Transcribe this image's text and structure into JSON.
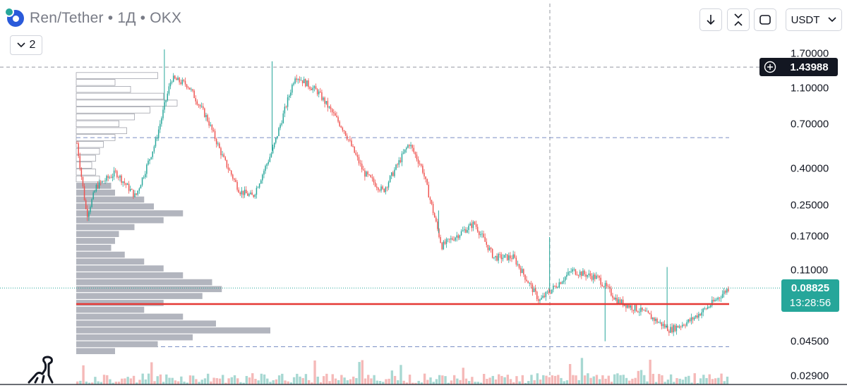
{
  "header": {
    "title": "Ren/Tether • 1Д • OKX",
    "interval_badge": "2"
  },
  "toolbar": {
    "currency": "USDT"
  },
  "price_axis": {
    "ticks": [
      "1.70000",
      "1.10000",
      "0.70000",
      "0.40000",
      "0.25000",
      "0.17000",
      "0.11000",
      "0.04500",
      "0.02900"
    ]
  },
  "crosshair": {
    "price": "1.43988"
  },
  "last_price": {
    "price": "0.08825",
    "countdown": "13:28:56"
  },
  "colors": {
    "up": "#26a69a",
    "down": "#ef5350",
    "horizontal_level": "#e53935",
    "volume_profile": "#b2b5be"
  },
  "chart_data": {
    "type": "candlestick",
    "title": "Ren/Tether • 1Д • OKX",
    "y_scale": "log",
    "ylim": [
      0.029,
      1.9
    ],
    "y_ticks": [
      1.7,
      1.1,
      0.7,
      0.4,
      0.25,
      0.17,
      0.11,
      0.045,
      0.029
    ],
    "crosshair_price": 1.43988,
    "last_price": 0.08825,
    "horizontal_level": 0.072,
    "dashed_levels": [
      0.59,
      0.042
    ],
    "price_path": [
      [
        0,
        0.55
      ],
      [
        0.015,
        0.22
      ],
      [
        0.03,
        0.32
      ],
      [
        0.06,
        0.38
      ],
      [
        0.09,
        0.28
      ],
      [
        0.12,
        0.55
      ],
      [
        0.145,
        1.25
      ],
      [
        0.17,
        1.15
      ],
      [
        0.2,
        0.75
      ],
      [
        0.225,
        0.45
      ],
      [
        0.25,
        0.3
      ],
      [
        0.27,
        0.28
      ],
      [
        0.3,
        0.5
      ],
      [
        0.335,
        1.3
      ],
      [
        0.37,
        1.05
      ],
      [
        0.41,
        0.65
      ],
      [
        0.44,
        0.38
      ],
      [
        0.47,
        0.3
      ],
      [
        0.51,
        0.55
      ],
      [
        0.53,
        0.4
      ],
      [
        0.56,
        0.15
      ],
      [
        0.61,
        0.2
      ],
      [
        0.64,
        0.13
      ],
      [
        0.67,
        0.13
      ],
      [
        0.71,
        0.075
      ],
      [
        0.76,
        0.11
      ],
      [
        0.8,
        0.1
      ],
      [
        0.83,
        0.075
      ],
      [
        0.87,
        0.065
      ],
      [
        0.91,
        0.052
      ],
      [
        0.94,
        0.058
      ],
      [
        0.97,
        0.07
      ],
      [
        1.0,
        0.088
      ]
    ],
    "volume_profile": [
      0.42,
      0.2,
      0.28,
      0.45,
      0.52,
      0.38,
      0.3,
      0.22,
      0.26,
      0.2,
      0.14,
      0.12,
      0.1,
      0.08,
      0.1,
      0.12,
      0.18,
      0.2,
      0.35,
      0.4,
      0.55,
      0.45,
      0.3,
      0.22,
      0.2,
      0.18,
      0.25,
      0.35,
      0.45,
      0.55,
      0.7,
      0.75,
      0.65,
      0.45,
      0.35,
      0.55,
      0.72,
      1.0,
      0.6,
      0.42,
      0.2
    ]
  }
}
